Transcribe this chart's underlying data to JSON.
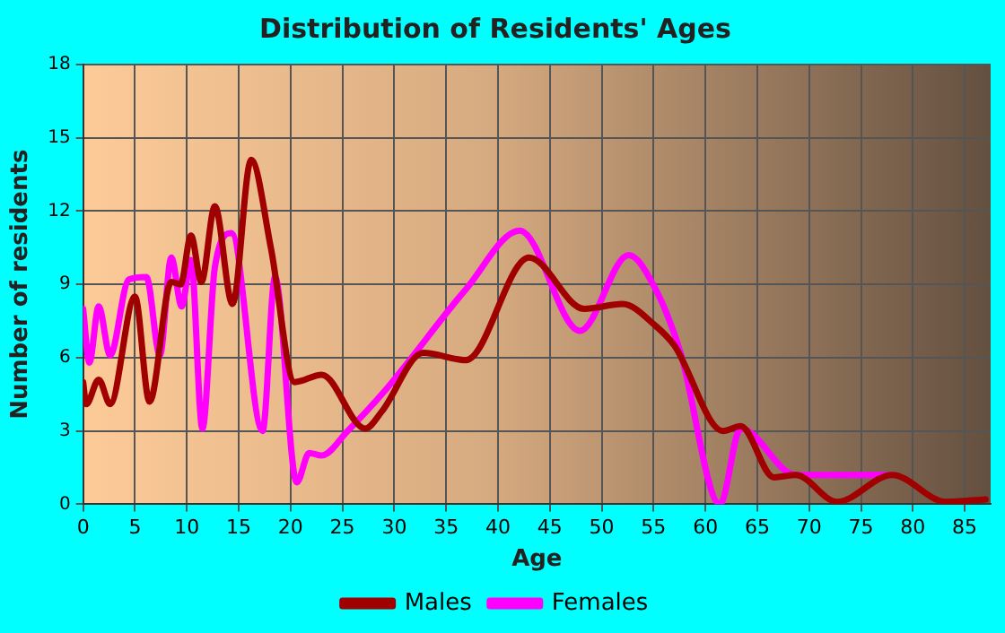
{
  "chart_data": {
    "type": "line",
    "title": "Distribution of Residents' Ages",
    "xlabel": "Age",
    "ylabel": "Number of residents",
    "xlim": [
      0,
      87.5
    ],
    "xticks": [
      0,
      5,
      10,
      15,
      20,
      25,
      30,
      35,
      40,
      45,
      50,
      55,
      60,
      65,
      70,
      75,
      80,
      85
    ],
    "ylim": [
      0,
      18
    ],
    "yticks": [
      0,
      3,
      6,
      9,
      12,
      15,
      18
    ],
    "grid": true,
    "legend": "bottom",
    "marker": "none",
    "line_style": "solid",
    "series": [
      {
        "name": "Males",
        "color": "#a00000",
        "x": [
          0,
          0.3,
          1.5,
          2.6,
          5,
          6.4,
          8.5,
          9.4,
          10.4,
          11.4,
          12.7,
          14.4,
          16.2,
          18.1,
          20.4,
          23,
          27.2,
          28.8,
          32.8,
          36.9,
          43,
          48.3,
          52,
          55.2,
          57,
          61.7,
          63.4,
          66.6,
          68.7,
          72.7,
          78,
          83.2,
          87
        ],
        "values": [
          5,
          4.1,
          5.1,
          4.1,
          8.5,
          4.2,
          9.1,
          9,
          11,
          9.1,
          12.2,
          8.2,
          14.1,
          10.5,
          5,
          5.3,
          3.1,
          3.8,
          6.2,
          5.9,
          10.1,
          8,
          8.2,
          7.3,
          6.5,
          3,
          3.2,
          1.1,
          1.2,
          0.1,
          1.2,
          0.1,
          0.2
        ]
      },
      {
        "name": "Females",
        "color": "#ff00ff",
        "x": [
          0,
          0.6,
          1.5,
          2.6,
          4.4,
          6.1,
          7.4,
          8.5,
          9.5,
          10.4,
          11.5,
          12.7,
          14.3,
          17.3,
          18.5,
          20.6,
          21.8,
          23,
          25.5,
          29,
          36.9,
          42.1,
          47.9,
          52.6,
          55.2,
          57.6,
          61.4,
          63.4,
          68.7,
          76.2,
          78
        ],
        "values": [
          8,
          5.8,
          8.1,
          6.1,
          9.2,
          9.3,
          6.1,
          10.1,
          8.1,
          10,
          3.1,
          9.7,
          11.1,
          3,
          9.3,
          0.9,
          2.1,
          2,
          3,
          4.6,
          8.8,
          11.2,
          7.1,
          10.2,
          8.8,
          6.2,
          0,
          3.1,
          1.2,
          1.2,
          1.2
        ]
      }
    ]
  }
}
